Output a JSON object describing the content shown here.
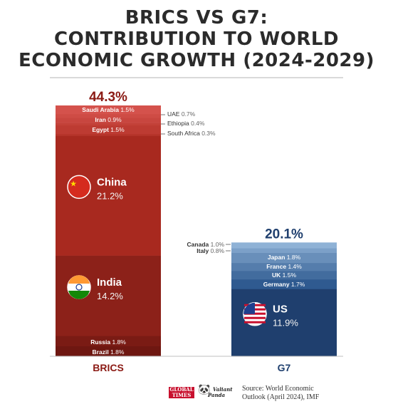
{
  "header": {
    "title_line1": "BRICS VS G7:",
    "title_line2": "CONTRIBUTION TO WORLD",
    "title_line3": "ECONOMIC GROWTH (2024-2029)"
  },
  "footer": {
    "logo1": "GLOBAL TIMES",
    "logo2": "Valiant Panda",
    "source_line1": "Source: World Economic",
    "source_line2": "Outlook (April 2024), IMF"
  },
  "colors": {
    "brics_light": "#d4524c",
    "brics_main": "#a32a20",
    "brics_dark": "#7e1a14",
    "brics_label": "#8b1a14",
    "g7_light": "#8fb2d6",
    "g7_main": "#1f3f6e",
    "g7_label": "#1f3f6e"
  },
  "chart_data": {
    "type": "bar",
    "title": "BRICS VS G7: CONTRIBUTION TO WORLD ECONOMIC GROWTH (2024-2029)",
    "unit": "%",
    "categories": [
      "BRICS",
      "G7"
    ],
    "totals": [
      "44.3%",
      "20.1%"
    ],
    "values": [
      44.3,
      20.1
    ],
    "stacks": [
      {
        "group": "BRICS",
        "segments": [
          {
            "name": "Brazil",
            "value": 1.8,
            "label": "1.8%"
          },
          {
            "name": "Russia",
            "value": 1.8,
            "label": "1.8%"
          },
          {
            "name": "India",
            "value": 14.2,
            "label": "14.2%"
          },
          {
            "name": "China",
            "value": 21.2,
            "label": "21.2%"
          },
          {
            "name": "South Africa",
            "value": 0.3,
            "label": "0.3%"
          },
          {
            "name": "Egypt",
            "value": 1.5,
            "label": "1.5%"
          },
          {
            "name": "Ethiopia",
            "value": 0.4,
            "label": "0.4%"
          },
          {
            "name": "Iran",
            "value": 0.9,
            "label": "0.9%"
          },
          {
            "name": "UAE",
            "value": 0.7,
            "label": "0.7%"
          },
          {
            "name": "Saudi Arabia",
            "value": 1.5,
            "label": "1.5%"
          }
        ]
      },
      {
        "group": "G7",
        "segments": [
          {
            "name": "US",
            "value": 11.9,
            "label": "11.9%"
          },
          {
            "name": "Germany",
            "value": 1.7,
            "label": "1.7%"
          },
          {
            "name": "UK",
            "value": 1.5,
            "label": "1.5%"
          },
          {
            "name": "France",
            "value": 1.4,
            "label": "1.4%"
          },
          {
            "name": "Japan",
            "value": 1.8,
            "label": "1.8%"
          },
          {
            "name": "Italy",
            "value": 0.8,
            "label": "0.8%"
          },
          {
            "name": "Canada",
            "value": 1.0,
            "label": "1.0%"
          }
        ]
      }
    ]
  }
}
